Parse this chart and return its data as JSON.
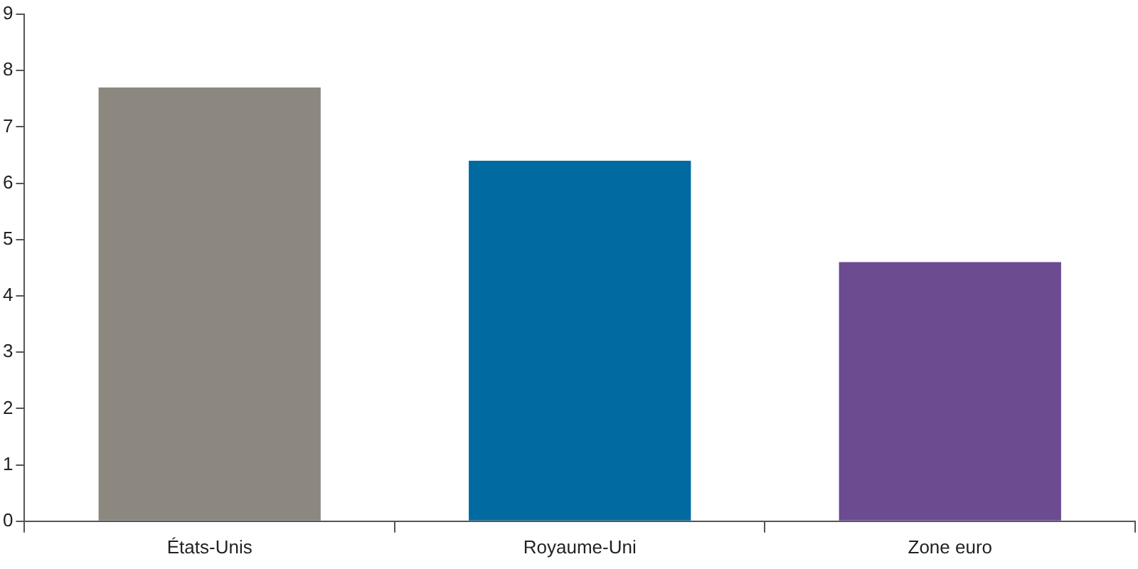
{
  "chart_data": {
    "type": "bar",
    "categories": [
      "États-Unis",
      "Royaume-Uni",
      "Zone euro"
    ],
    "values": [
      7.7,
      6.4,
      4.6
    ],
    "colors": [
      "#8c8880",
      "#006aa1",
      "#6c4b91"
    ],
    "ylim": [
      0,
      9
    ],
    "yticks": [
      0,
      1,
      2,
      3,
      4,
      5,
      6,
      7,
      8,
      9
    ],
    "grid": false,
    "legend": false
  }
}
